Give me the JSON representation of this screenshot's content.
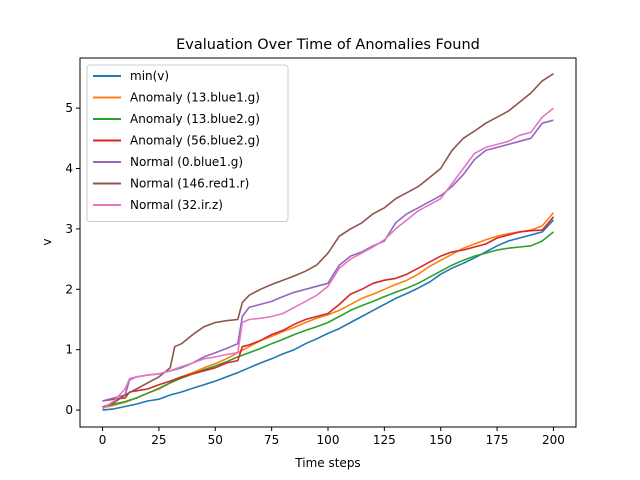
{
  "chart_data": {
    "type": "line",
    "title": "Evaluation Over Time of Anomalies Found",
    "xlabel": "Time steps",
    "ylabel": "v",
    "xlim": [
      -10,
      210
    ],
    "ylim": [
      -0.28,
      5.83
    ],
    "xticks": [
      0,
      25,
      50,
      75,
      100,
      125,
      150,
      175,
      200
    ],
    "yticks": [
      0,
      1,
      2,
      3,
      4,
      5
    ],
    "grid": false,
    "legend_position": "top-left",
    "series": [
      {
        "name": "min(v)",
        "color": "#1f77b4",
        "x": [
          0,
          5,
          10,
          15,
          20,
          25,
          30,
          35,
          40,
          45,
          50,
          55,
          60,
          65,
          70,
          75,
          80,
          85,
          90,
          95,
          100,
          105,
          110,
          115,
          120,
          125,
          130,
          135,
          140,
          145,
          150,
          155,
          160,
          165,
          170,
          175,
          180,
          185,
          190,
          195,
          200
        ],
        "values": [
          0.0,
          0.02,
          0.06,
          0.1,
          0.15,
          0.18,
          0.25,
          0.3,
          0.36,
          0.42,
          0.48,
          0.55,
          0.62,
          0.7,
          0.78,
          0.85,
          0.93,
          1.0,
          1.1,
          1.18,
          1.27,
          1.35,
          1.45,
          1.55,
          1.65,
          1.75,
          1.85,
          1.93,
          2.02,
          2.12,
          2.25,
          2.35,
          2.43,
          2.52,
          2.62,
          2.72,
          2.8,
          2.85,
          2.9,
          2.95,
          3.15
        ]
      },
      {
        "name": "Anomaly (13.blue1.g)",
        "color": "#ff7f0e",
        "x": [
          0,
          5,
          10,
          15,
          20,
          25,
          30,
          35,
          40,
          45,
          50,
          55,
          60,
          65,
          70,
          75,
          80,
          85,
          90,
          95,
          100,
          105,
          110,
          115,
          120,
          125,
          130,
          135,
          140,
          145,
          150,
          155,
          160,
          165,
          170,
          175,
          180,
          185,
          190,
          195,
          200
        ],
        "values": [
          0.04,
          0.08,
          0.13,
          0.2,
          0.28,
          0.35,
          0.45,
          0.55,
          0.62,
          0.7,
          0.77,
          0.85,
          0.95,
          1.05,
          1.15,
          1.22,
          1.3,
          1.37,
          1.45,
          1.52,
          1.58,
          1.65,
          1.75,
          1.85,
          1.92,
          2.0,
          2.08,
          2.15,
          2.25,
          2.38,
          2.48,
          2.58,
          2.68,
          2.75,
          2.82,
          2.88,
          2.92,
          2.95,
          2.98,
          3.05,
          3.27
        ]
      },
      {
        "name": "Anomaly (13.blue2.g)",
        "color": "#2ca02c",
        "x": [
          0,
          5,
          10,
          15,
          20,
          25,
          30,
          35,
          40,
          45,
          50,
          55,
          60,
          65,
          70,
          75,
          80,
          85,
          90,
          95,
          100,
          105,
          110,
          115,
          120,
          125,
          130,
          135,
          140,
          145,
          150,
          155,
          160,
          165,
          170,
          175,
          180,
          185,
          190,
          195,
          200
        ],
        "values": [
          0.05,
          0.1,
          0.14,
          0.2,
          0.28,
          0.36,
          0.45,
          0.53,
          0.6,
          0.67,
          0.73,
          0.8,
          0.88,
          0.95,
          1.02,
          1.1,
          1.17,
          1.25,
          1.32,
          1.38,
          1.45,
          1.55,
          1.65,
          1.73,
          1.8,
          1.88,
          1.95,
          2.02,
          2.1,
          2.2,
          2.3,
          2.4,
          2.48,
          2.55,
          2.6,
          2.65,
          2.68,
          2.7,
          2.72,
          2.8,
          2.95
        ]
      },
      {
        "name": "Anomaly (56.blue2.g)",
        "color": "#d62728",
        "x": [
          0,
          5,
          10,
          12,
          15,
          20,
          25,
          30,
          35,
          40,
          45,
          50,
          55,
          60,
          62,
          65,
          70,
          75,
          80,
          85,
          90,
          95,
          100,
          105,
          110,
          115,
          120,
          125,
          130,
          135,
          140,
          145,
          150,
          155,
          160,
          165,
          170,
          175,
          180,
          185,
          190,
          195,
          200
        ],
        "values": [
          0.15,
          0.18,
          0.2,
          0.3,
          0.32,
          0.35,
          0.42,
          0.48,
          0.55,
          0.6,
          0.65,
          0.7,
          0.78,
          0.82,
          1.05,
          1.08,
          1.15,
          1.25,
          1.32,
          1.42,
          1.5,
          1.55,
          1.6,
          1.75,
          1.92,
          2.0,
          2.1,
          2.15,
          2.18,
          2.25,
          2.35,
          2.45,
          2.55,
          2.62,
          2.65,
          2.7,
          2.75,
          2.85,
          2.9,
          2.95,
          2.97,
          2.98,
          3.2
        ]
      },
      {
        "name": "Normal (0.blue1.g)",
        "color": "#9467bd",
        "x": [
          0,
          5,
          10,
          12,
          15,
          20,
          25,
          30,
          35,
          40,
          45,
          50,
          55,
          60,
          62,
          65,
          70,
          75,
          80,
          85,
          90,
          95,
          100,
          105,
          110,
          115,
          120,
          125,
          130,
          135,
          140,
          145,
          150,
          155,
          160,
          165,
          170,
          175,
          180,
          185,
          190,
          195,
          200
        ],
        "values": [
          0.15,
          0.2,
          0.25,
          0.5,
          0.55,
          0.58,
          0.6,
          0.65,
          0.7,
          0.78,
          0.88,
          0.95,
          1.02,
          1.1,
          1.55,
          1.7,
          1.75,
          1.8,
          1.88,
          1.95,
          2.0,
          2.05,
          2.1,
          2.4,
          2.55,
          2.62,
          2.72,
          2.8,
          3.1,
          3.25,
          3.35,
          3.45,
          3.55,
          3.7,
          3.9,
          4.15,
          4.3,
          4.35,
          4.4,
          4.45,
          4.5,
          4.75,
          4.8
        ]
      },
      {
        "name": "Normal (146.red1.r)",
        "color": "#8c564b",
        "x": [
          0,
          5,
          10,
          15,
          20,
          25,
          30,
          32,
          35,
          40,
          45,
          50,
          55,
          60,
          62,
          65,
          70,
          75,
          80,
          85,
          90,
          95,
          100,
          105,
          110,
          115,
          120,
          125,
          130,
          135,
          140,
          145,
          150,
          155,
          160,
          165,
          170,
          175,
          180,
          185,
          190,
          195,
          200
        ],
        "values": [
          0.05,
          0.12,
          0.25,
          0.35,
          0.45,
          0.55,
          0.7,
          1.05,
          1.1,
          1.25,
          1.38,
          1.45,
          1.48,
          1.5,
          1.78,
          1.9,
          2.0,
          2.08,
          2.15,
          2.22,
          2.3,
          2.4,
          2.6,
          2.88,
          3.0,
          3.1,
          3.25,
          3.35,
          3.5,
          3.6,
          3.7,
          3.85,
          4.0,
          4.3,
          4.5,
          4.62,
          4.75,
          4.85,
          4.95,
          5.1,
          5.25,
          5.45,
          5.57
        ]
      },
      {
        "name": "Normal (32.ir.z)",
        "color": "#e377c2",
        "x": [
          0,
          5,
          10,
          12,
          15,
          20,
          25,
          30,
          35,
          40,
          45,
          50,
          55,
          60,
          62,
          65,
          70,
          75,
          80,
          85,
          90,
          95,
          100,
          105,
          110,
          115,
          120,
          125,
          130,
          135,
          140,
          145,
          150,
          155,
          160,
          165,
          170,
          175,
          180,
          185,
          190,
          195,
          200
        ],
        "values": [
          0.02,
          0.15,
          0.35,
          0.52,
          0.55,
          0.58,
          0.6,
          0.65,
          0.72,
          0.78,
          0.85,
          0.88,
          0.92,
          0.95,
          1.45,
          1.5,
          1.52,
          1.55,
          1.6,
          1.7,
          1.8,
          1.9,
          2.05,
          2.35,
          2.5,
          2.6,
          2.7,
          2.82,
          3.0,
          3.15,
          3.3,
          3.4,
          3.5,
          3.75,
          4.0,
          4.25,
          4.35,
          4.4,
          4.45,
          4.55,
          4.6,
          4.85,
          5.0
        ]
      }
    ]
  }
}
